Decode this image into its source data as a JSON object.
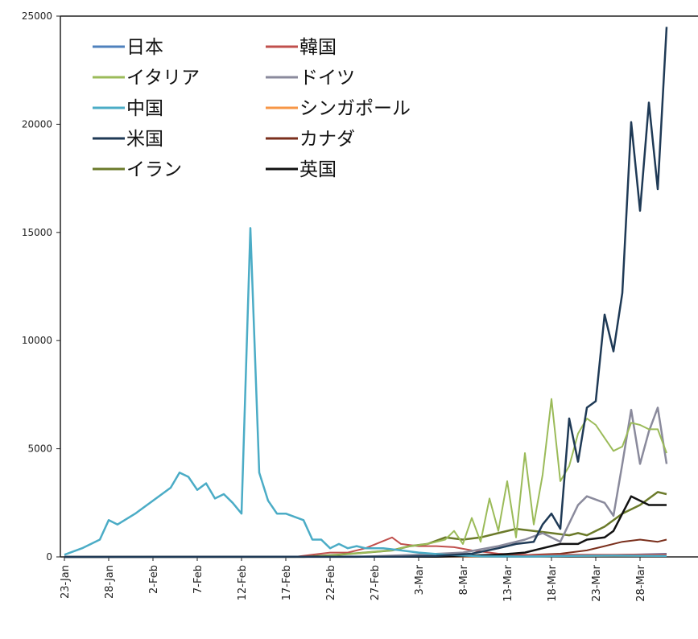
{
  "chart_data": {
    "type": "line",
    "title": "",
    "xlabel": "",
    "ylabel": "",
    "ylim": [
      0,
      25000
    ],
    "y_ticks": [
      "0",
      "5000",
      "10000",
      "15000",
      "20000",
      "25000"
    ],
    "x_tick_labels": [
      "23-Jan",
      "28-Jan",
      "2-Feb",
      "7-Feb",
      "12-Feb",
      "17-Feb",
      "22-Feb",
      "27-Feb",
      "3-Mar",
      "8-Mar",
      "13-Mar",
      "18-Mar",
      "23-Mar",
      "28-Mar"
    ],
    "x_start": "2020-01-23",
    "x_end": "2020-03-31",
    "grid": false,
    "legend_position": "top-left",
    "series": [
      {
        "name": "日本",
        "color": "#4f81bd",
        "width": 2,
        "points": [
          [
            "2020-01-23",
            0
          ],
          [
            "2020-02-20",
            20
          ],
          [
            "2020-03-01",
            30
          ],
          [
            "2020-03-10",
            50
          ],
          [
            "2020-03-20",
            60
          ],
          [
            "2020-03-25",
            90
          ],
          [
            "2020-03-31",
            150
          ]
        ]
      },
      {
        "name": "韓国",
        "color": "#c0504d",
        "width": 2,
        "points": [
          [
            "2020-01-23",
            0
          ],
          [
            "2020-02-18",
            0
          ],
          [
            "2020-02-20",
            100
          ],
          [
            "2020-02-22",
            200
          ],
          [
            "2020-02-24",
            200
          ],
          [
            "2020-02-26",
            400
          ],
          [
            "2020-02-29",
            900
          ],
          [
            "2020-03-01",
            600
          ],
          [
            "2020-03-03",
            500
          ],
          [
            "2020-03-05",
            500
          ],
          [
            "2020-03-07",
            450
          ],
          [
            "2020-03-09",
            300
          ],
          [
            "2020-03-12",
            150
          ],
          [
            "2020-03-16",
            80
          ],
          [
            "2020-03-20",
            100
          ],
          [
            "2020-03-25",
            100
          ],
          [
            "2020-03-31",
            120
          ]
        ]
      },
      {
        "name": "イタリア",
        "color": "#9bbb59",
        "width": 2,
        "points": [
          [
            "2020-01-23",
            0
          ],
          [
            "2020-02-20",
            0
          ],
          [
            "2020-02-23",
            100
          ],
          [
            "2020-02-26",
            200
          ],
          [
            "2020-02-29",
            300
          ],
          [
            "2020-03-02",
            500
          ],
          [
            "2020-03-04",
            600
          ],
          [
            "2020-03-06",
            800
          ],
          [
            "2020-03-07",
            1200
          ],
          [
            "2020-03-08",
            600
          ],
          [
            "2020-03-09",
            1800
          ],
          [
            "2020-03-10",
            700
          ],
          [
            "2020-03-11",
            2700
          ],
          [
            "2020-03-12",
            1200
          ],
          [
            "2020-03-13",
            3500
          ],
          [
            "2020-03-14",
            900
          ],
          [
            "2020-03-15",
            4800
          ],
          [
            "2020-03-16",
            1500
          ],
          [
            "2020-03-17",
            3800
          ],
          [
            "2020-03-18",
            7300
          ],
          [
            "2020-03-19",
            3500
          ],
          [
            "2020-03-20",
            4200
          ],
          [
            "2020-03-21",
            5700
          ],
          [
            "2020-03-22",
            6400
          ],
          [
            "2020-03-23",
            6100
          ],
          [
            "2020-03-24",
            5500
          ],
          [
            "2020-03-25",
            4900
          ],
          [
            "2020-03-26",
            5100
          ],
          [
            "2020-03-27",
            6200
          ],
          [
            "2020-03-28",
            6100
          ],
          [
            "2020-03-29",
            5900
          ],
          [
            "2020-03-30",
            5900
          ],
          [
            "2020-03-31",
            4800
          ]
        ]
      },
      {
        "name": "ドイツ",
        "color": "#8a8a9c",
        "width": 2.5,
        "points": [
          [
            "2020-01-23",
            0
          ],
          [
            "2020-02-25",
            0
          ],
          [
            "2020-03-03",
            100
          ],
          [
            "2020-03-08",
            200
          ],
          [
            "2020-03-12",
            500
          ],
          [
            "2020-03-15",
            800
          ],
          [
            "2020-03-17",
            1100
          ],
          [
            "2020-03-19",
            700
          ],
          [
            "2020-03-21",
            2400
          ],
          [
            "2020-03-22",
            2800
          ],
          [
            "2020-03-24",
            2500
          ],
          [
            "2020-03-25",
            1900
          ],
          [
            "2020-03-26",
            4300
          ],
          [
            "2020-03-27",
            6800
          ],
          [
            "2020-03-28",
            4300
          ],
          [
            "2020-03-29",
            5800
          ],
          [
            "2020-03-30",
            6900
          ],
          [
            "2020-03-31",
            4300
          ]
        ]
      },
      {
        "name": "中国",
        "color": "#4bacc6",
        "width": 2.5,
        "points": [
          [
            "2020-01-23",
            100
          ],
          [
            "2020-01-25",
            400
          ],
          [
            "2020-01-27",
            800
          ],
          [
            "2020-01-28",
            1700
          ],
          [
            "2020-01-29",
            1500
          ],
          [
            "2020-01-31",
            2000
          ],
          [
            "2020-02-02",
            2600
          ],
          [
            "2020-02-04",
            3200
          ],
          [
            "2020-02-05",
            3900
          ],
          [
            "2020-02-06",
            3700
          ],
          [
            "2020-02-07",
            3100
          ],
          [
            "2020-02-08",
            3400
          ],
          [
            "2020-02-09",
            2700
          ],
          [
            "2020-02-10",
            2900
          ],
          [
            "2020-02-11",
            2500
          ],
          [
            "2020-02-12",
            2000
          ],
          [
            "2020-02-13",
            15200
          ],
          [
            "2020-02-14",
            3900
          ],
          [
            "2020-02-15",
            2600
          ],
          [
            "2020-02-16",
            2000
          ],
          [
            "2020-02-17",
            2000
          ],
          [
            "2020-02-19",
            1700
          ],
          [
            "2020-02-20",
            800
          ],
          [
            "2020-02-21",
            800
          ],
          [
            "2020-02-22",
            400
          ],
          [
            "2020-02-23",
            600
          ],
          [
            "2020-02-24",
            400
          ],
          [
            "2020-02-25",
            500
          ],
          [
            "2020-02-26",
            400
          ],
          [
            "2020-02-27",
            400
          ],
          [
            "2020-02-28",
            400
          ],
          [
            "2020-03-01",
            300
          ],
          [
            "2020-03-03",
            200
          ],
          [
            "2020-03-06",
            100
          ],
          [
            "2020-03-10",
            30
          ],
          [
            "2020-03-15",
            20
          ],
          [
            "2020-03-20",
            50
          ],
          [
            "2020-03-25",
            60
          ],
          [
            "2020-03-31",
            50
          ]
        ]
      },
      {
        "name": "シンガポール",
        "color": "#f79646",
        "width": 2,
        "points": [
          [
            "2020-01-23",
            0
          ],
          [
            "2020-02-10",
            10
          ],
          [
            "2020-03-10",
            15
          ],
          [
            "2020-03-20",
            40
          ],
          [
            "2020-03-31",
            50
          ]
        ]
      },
      {
        "name": "米国",
        "color": "#1f3a56",
        "width": 2.5,
        "points": [
          [
            "2020-01-23",
            0
          ],
          [
            "2020-03-01",
            10
          ],
          [
            "2020-03-05",
            50
          ],
          [
            "2020-03-09",
            150
          ],
          [
            "2020-03-12",
            400
          ],
          [
            "2020-03-14",
            600
          ],
          [
            "2020-03-16",
            700
          ],
          [
            "2020-03-17",
            1500
          ],
          [
            "2020-03-18",
            2000
          ],
          [
            "2020-03-19",
            1300
          ],
          [
            "2020-03-20",
            6400
          ],
          [
            "2020-03-21",
            4400
          ],
          [
            "2020-03-22",
            6900
          ],
          [
            "2020-03-23",
            7200
          ],
          [
            "2020-03-24",
            11200
          ],
          [
            "2020-03-25",
            9500
          ],
          [
            "2020-03-26",
            12200
          ],
          [
            "2020-03-27",
            20100
          ],
          [
            "2020-03-28",
            16000
          ],
          [
            "2020-03-29",
            21000
          ],
          [
            "2020-03-30",
            17000
          ],
          [
            "2020-03-31",
            24500
          ]
        ]
      },
      {
        "name": "カナダ",
        "color": "#7a2f1c",
        "width": 2,
        "points": [
          [
            "2020-01-23",
            0
          ],
          [
            "2020-03-05",
            10
          ],
          [
            "2020-03-12",
            50
          ],
          [
            "2020-03-16",
            100
          ],
          [
            "2020-03-19",
            150
          ],
          [
            "2020-03-22",
            300
          ],
          [
            "2020-03-24",
            500
          ],
          [
            "2020-03-26",
            700
          ],
          [
            "2020-03-28",
            800
          ],
          [
            "2020-03-30",
            700
          ],
          [
            "2020-03-31",
            800
          ]
        ]
      },
      {
        "name": "イラン",
        "color": "#6b7a2a",
        "width": 2.5,
        "points": [
          [
            "2020-01-23",
            0
          ],
          [
            "2020-02-19",
            0
          ],
          [
            "2020-02-23",
            100
          ],
          [
            "2020-02-26",
            200
          ],
          [
            "2020-02-29",
            300
          ],
          [
            "2020-03-02",
            500
          ],
          [
            "2020-03-04",
            600
          ],
          [
            "2020-03-06",
            900
          ],
          [
            "2020-03-08",
            800
          ],
          [
            "2020-03-10",
            900
          ],
          [
            "2020-03-12",
            1100
          ],
          [
            "2020-03-14",
            1300
          ],
          [
            "2020-03-16",
            1200
          ],
          [
            "2020-03-18",
            1100
          ],
          [
            "2020-03-20",
            1000
          ],
          [
            "2020-03-21",
            1100
          ],
          [
            "2020-03-22",
            1000
          ],
          [
            "2020-03-23",
            1200
          ],
          [
            "2020-03-24",
            1400
          ],
          [
            "2020-03-26",
            2000
          ],
          [
            "2020-03-28",
            2400
          ],
          [
            "2020-03-30",
            3000
          ],
          [
            "2020-03-31",
            2900
          ]
        ]
      },
      {
        "name": "英国",
        "color": "#111111",
        "width": 2.5,
        "points": [
          [
            "2020-01-23",
            0
          ],
          [
            "2020-03-05",
            10
          ],
          [
            "2020-03-12",
            100
          ],
          [
            "2020-03-15",
            200
          ],
          [
            "2020-03-17",
            400
          ],
          [
            "2020-03-19",
            600
          ],
          [
            "2020-03-21",
            600
          ],
          [
            "2020-03-22",
            800
          ],
          [
            "2020-03-24",
            900
          ],
          [
            "2020-03-25",
            1200
          ],
          [
            "2020-03-27",
            2800
          ],
          [
            "2020-03-29",
            2400
          ],
          [
            "2020-03-31",
            2400
          ]
        ]
      }
    ]
  }
}
